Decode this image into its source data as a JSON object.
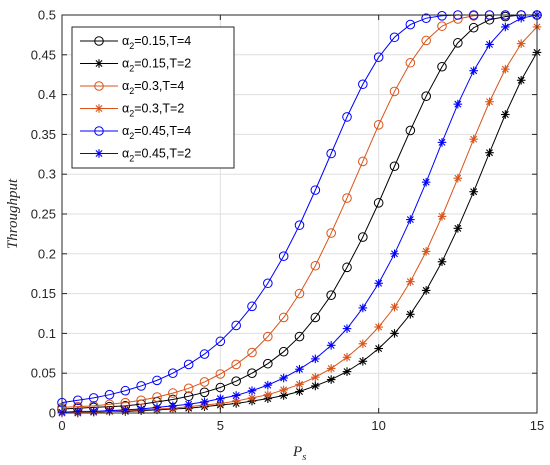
{
  "chart_data": {
    "type": "line",
    "title": "",
    "xlabel": "P",
    "xlabel_sub": "s",
    "ylabel": "Throughput",
    "xlim": [
      0,
      15
    ],
    "ylim": [
      0,
      0.5
    ],
    "xticks": [
      "0",
      "5",
      "10",
      "15"
    ],
    "yticks": [
      "0",
      "0.05",
      "0.1",
      "0.15",
      "0.2",
      "0.25",
      "0.3",
      "0.35",
      "0.4",
      "0.45",
      "0.5"
    ],
    "grid": true,
    "legend_position": "top-left",
    "x": [
      0,
      0.5,
      1,
      1.5,
      2,
      2.5,
      3,
      3.5,
      4,
      4.5,
      5,
      5.5,
      6,
      6.5,
      7,
      7.5,
      8,
      8.5,
      9,
      9.5,
      10,
      10.5,
      11,
      11.5,
      12,
      12.5,
      13,
      13.5,
      14,
      14.5,
      15
    ],
    "series": [
      {
        "name": "α2=0.15,T=4",
        "legend_main": "α",
        "legend_sub": "2",
        "legend_rest": "=0.15,T=4",
        "color": "#000000",
        "marker": "circle",
        "values": [
          0.005,
          0.006,
          0.007,
          0.008,
          0.009,
          0.011,
          0.014,
          0.017,
          0.021,
          0.026,
          0.032,
          0.04,
          0.05,
          0.062,
          0.077,
          0.096,
          0.12,
          0.148,
          0.183,
          0.221,
          0.264,
          0.31,
          0.355,
          0.398,
          0.435,
          0.465,
          0.484,
          0.494,
          0.498,
          0.5,
          0.5
        ]
      },
      {
        "name": "α2=0.15,T=2",
        "legend_main": "α",
        "legend_sub": "2",
        "legend_rest": "=0.15,T=2",
        "color": "#000000",
        "marker": "star",
        "values": [
          0.0,
          0.0,
          0.001,
          0.002,
          0.002,
          0.003,
          0.004,
          0.005,
          0.006,
          0.008,
          0.01,
          0.012,
          0.015,
          0.018,
          0.022,
          0.027,
          0.034,
          0.042,
          0.052,
          0.065,
          0.081,
          0.1,
          0.124,
          0.154,
          0.19,
          0.232,
          0.278,
          0.327,
          0.375,
          0.418,
          0.453
        ]
      },
      {
        "name": "α2=0.3,T=4",
        "legend_main": "α",
        "legend_sub": "2",
        "legend_rest": "=0.3,T=4",
        "color": "#d95319",
        "marker": "circle",
        "values": [
          0.007,
          0.008,
          0.009,
          0.011,
          0.013,
          0.016,
          0.02,
          0.025,
          0.031,
          0.039,
          0.049,
          0.061,
          0.076,
          0.096,
          0.12,
          0.15,
          0.185,
          0.226,
          0.27,
          0.316,
          0.362,
          0.404,
          0.44,
          0.468,
          0.486,
          0.495,
          0.499,
          0.5,
          0.5,
          0.5,
          0.5
        ]
      },
      {
        "name": "α2=0.3,T=2",
        "legend_main": "α",
        "legend_sub": "2",
        "legend_rest": "=0.3,T=2",
        "color": "#d95319",
        "marker": "star",
        "values": [
          0.0,
          0.001,
          0.001,
          0.002,
          0.003,
          0.004,
          0.005,
          0.006,
          0.008,
          0.01,
          0.012,
          0.015,
          0.019,
          0.023,
          0.029,
          0.036,
          0.045,
          0.056,
          0.07,
          0.087,
          0.108,
          0.133,
          0.165,
          0.203,
          0.247,
          0.295,
          0.344,
          0.391,
          0.432,
          0.464,
          0.485
        ]
      },
      {
        "name": "α2=0.45,T=4",
        "legend_main": "α",
        "legend_sub": "2",
        "legend_rest": "=0.45,T=4",
        "color": "#0000ff",
        "marker": "circle",
        "values": [
          0.013,
          0.016,
          0.019,
          0.023,
          0.028,
          0.034,
          0.041,
          0.05,
          0.061,
          0.074,
          0.09,
          0.11,
          0.134,
          0.163,
          0.197,
          0.236,
          0.28,
          0.326,
          0.372,
          0.413,
          0.447,
          0.472,
          0.488,
          0.496,
          0.499,
          0.5,
          0.5,
          0.5,
          0.5,
          0.5,
          0.5
        ]
      },
      {
        "name": "α2=0.45,T=2",
        "legend_main": "α",
        "legend_sub": "2",
        "legend_rest": "=0.45,T=2",
        "color": "#0000ff",
        "marker": "star",
        "values": [
          0.001,
          0.002,
          0.002,
          0.003,
          0.004,
          0.005,
          0.007,
          0.009,
          0.011,
          0.014,
          0.018,
          0.022,
          0.028,
          0.035,
          0.044,
          0.055,
          0.068,
          0.085,
          0.106,
          0.132,
          0.163,
          0.2,
          0.243,
          0.29,
          0.34,
          0.388,
          0.43,
          0.463,
          0.485,
          0.496,
          0.5
        ]
      }
    ]
  }
}
